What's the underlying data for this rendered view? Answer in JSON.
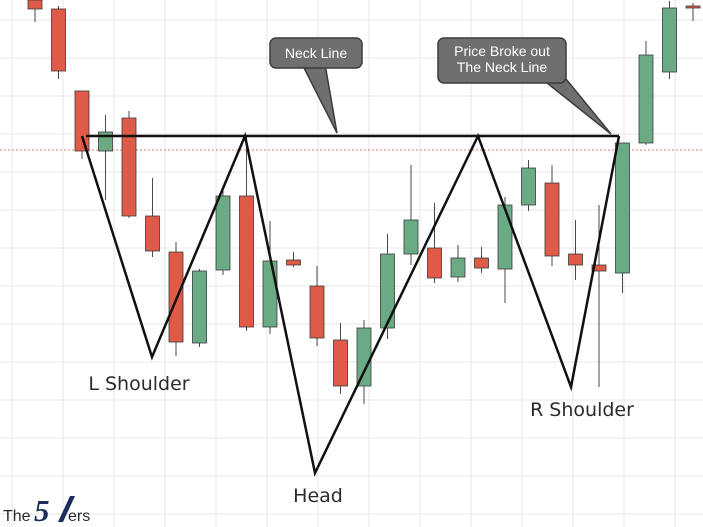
{
  "colors": {
    "bull": "#6aab86",
    "bear": "#e05a48",
    "wick": "#4a4a4a",
    "grid": "#e7e7e7",
    "neckline": "#111111",
    "current_price_line": "#d9826b",
    "callout_fill": "#6f6f6f",
    "callout_stroke": "#3c3c3c",
    "logo_accent": "#1b2e5c"
  },
  "callouts": {
    "neck_line": "Neck Line",
    "breakout_line1": "Price Broke out",
    "breakout_line2": "The Neck Line"
  },
  "pattern_labels": {
    "left_shoulder": "L Shoulder",
    "head": "Head",
    "right_shoulder": "R Shoulder"
  },
  "logo": {
    "prefix": "The",
    "number": "5",
    "suffix": "ers"
  },
  "chart_data": {
    "type": "candlestick",
    "title": "",
    "xlabel": "",
    "ylabel": "",
    "grid": true,
    "ylim": [
      0,
      527
    ],
    "note": "No price axis is printed; values are in an arbitrary price scale (0 = lowest shown).",
    "candles": [
      {
        "open": 527,
        "high": 527,
        "low": 505,
        "close": 518
      },
      {
        "open": 518,
        "high": 521,
        "low": 448,
        "close": 456
      },
      {
        "open": 436,
        "high": 436,
        "low": 368,
        "close": 376
      },
      {
        "open": 376,
        "high": 412,
        "low": 327,
        "close": 395
      },
      {
        "open": 409,
        "high": 416,
        "low": 309,
        "close": 311
      },
      {
        "open": 311,
        "high": 349,
        "low": 270,
        "close": 276
      },
      {
        "open": 275,
        "high": 285,
        "low": 171,
        "close": 185
      },
      {
        "open": 184,
        "high": 258,
        "low": 180,
        "close": 256
      },
      {
        "open": 257,
        "high": 339,
        "low": 252,
        "close": 331
      },
      {
        "open": 331,
        "high": 391,
        "low": 196,
        "close": 200
      },
      {
        "open": 200,
        "high": 306,
        "low": 193,
        "close": 266
      },
      {
        "open": 267,
        "high": 275,
        "low": 260,
        "close": 262
      },
      {
        "open": 241,
        "high": 261,
        "low": 181,
        "close": 189
      },
      {
        "open": 187,
        "high": 204,
        "low": 133,
        "close": 141
      },
      {
        "open": 141,
        "high": 207,
        "low": 123,
        "close": 199
      },
      {
        "open": 199,
        "high": 293,
        "low": 188,
        "close": 273
      },
      {
        "open": 273,
        "high": 362,
        "low": 262,
        "close": 307
      },
      {
        "open": 279,
        "high": 324,
        "low": 244,
        "close": 249
      },
      {
        "open": 250,
        "high": 282,
        "low": 245,
        "close": 269
      },
      {
        "open": 269,
        "high": 280,
        "low": 254,
        "close": 259
      },
      {
        "open": 258,
        "high": 330,
        "low": 224,
        "close": 322
      },
      {
        "open": 322,
        "high": 367,
        "low": 316,
        "close": 359
      },
      {
        "open": 344,
        "high": 362,
        "low": 261,
        "close": 271
      },
      {
        "open": 273,
        "high": 307,
        "low": 247,
        "close": 262
      },
      {
        "open": 262,
        "high": 322,
        "low": 140,
        "close": 256
      },
      {
        "open": 254,
        "high": 383,
        "low": 234,
        "close": 384
      },
      {
        "open": 384,
        "high": 486,
        "low": 382,
        "close": 472
      },
      {
        "open": 455,
        "high": 526,
        "low": 448,
        "close": 519
      },
      {
        "open": 521,
        "high": 524,
        "low": 506,
        "close": 520
      },
      {
        "open": 521,
        "high": 527,
        "low": 477,
        "close": 527
      }
    ],
    "annotations": [
      "Neck Line",
      "Price Broke out The Neck Line",
      "L Shoulder",
      "Head",
      "R Shoulder"
    ]
  }
}
